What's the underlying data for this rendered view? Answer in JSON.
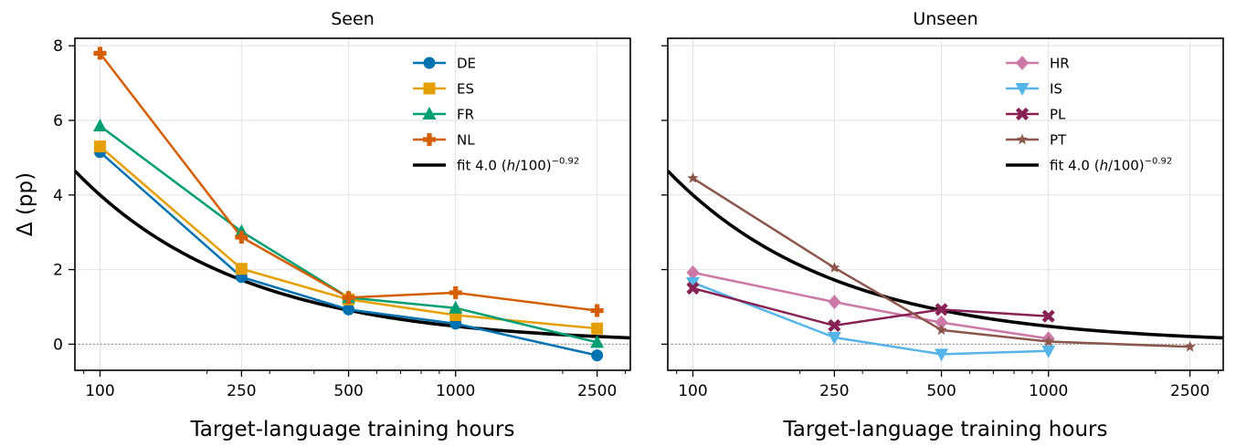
{
  "chart_data": [
    {
      "type": "line",
      "title": "Seen",
      "xlabel": "Target-language training hours",
      "ylabel": "Δ  (pp)",
      "x_scale": "log",
      "xlim": [
        85,
        3100
      ],
      "ylim": [
        -0.7,
        8.2
      ],
      "xticks": [
        100,
        250,
        500,
        1000,
        2500
      ],
      "xtick_labels": [
        "100",
        "250",
        "500",
        "1000",
        "2500"
      ],
      "yticks": [
        0,
        2,
        4,
        6,
        8
      ],
      "ytick_labels": [
        "0",
        "2",
        "4",
        "6",
        "8"
      ],
      "grid": true,
      "legend_position": "top-right",
      "zero_line": true,
      "series": [
        {
          "name": "DE",
          "color": "#0072B2",
          "marker": "circle",
          "x": [
            100,
            250,
            500,
            1000,
            2500
          ],
          "y": [
            5.15,
            1.8,
            0.93,
            0.55,
            -0.3
          ]
        },
        {
          "name": "ES",
          "color": "#E69F00",
          "marker": "square",
          "x": [
            100,
            250,
            500,
            1000,
            2500
          ],
          "y": [
            5.3,
            2.02,
            1.2,
            0.78,
            0.42
          ]
        },
        {
          "name": "FR",
          "color": "#009E73",
          "marker": "triangle-up",
          "x": [
            100,
            250,
            500,
            1000,
            2500
          ],
          "y": [
            5.85,
            3.02,
            1.25,
            0.97,
            0.05
          ]
        },
        {
          "name": "NL",
          "color": "#D55E00",
          "marker": "plus",
          "x": [
            100,
            250,
            500,
            1000,
            2500
          ],
          "y": [
            7.8,
            2.87,
            1.25,
            1.38,
            0.9
          ]
        }
      ],
      "fit": {
        "label_prefix": "fit 4.0",
        "label_expr": "(h/100)",
        "label_exponent": "−0.92",
        "a": 4.0,
        "b": -0.92,
        "color": "#000000"
      }
    },
    {
      "type": "line",
      "title": "Unseen",
      "xlabel": "Target-language training hours",
      "ylabel": "",
      "x_scale": "log",
      "xlim": [
        85,
        3100
      ],
      "ylim": [
        -0.7,
        8.2
      ],
      "xticks": [
        100,
        250,
        500,
        1000,
        2500
      ],
      "xtick_labels": [
        "100",
        "250",
        "500",
        "1000",
        "2500"
      ],
      "yticks": [
        0,
        2,
        4,
        6,
        8
      ],
      "ytick_labels": [],
      "grid": true,
      "legend_position": "top-right",
      "zero_line": true,
      "series": [
        {
          "name": "HR",
          "color": "#CC79A7",
          "marker": "diamond",
          "x": [
            100,
            250,
            500,
            1000
          ],
          "y": [
            1.92,
            1.13,
            0.58,
            0.15
          ]
        },
        {
          "name": "IS",
          "color": "#56B4E9",
          "marker": "triangle-down",
          "x": [
            100,
            250,
            500,
            1000
          ],
          "y": [
            1.65,
            0.18,
            -0.27,
            -0.18
          ]
        },
        {
          "name": "PL",
          "color": "#882255",
          "marker": "x",
          "x": [
            100,
            250,
            500,
            1000
          ],
          "y": [
            1.5,
            0.5,
            0.93,
            0.75
          ]
        },
        {
          "name": "PT",
          "color": "#8C564B",
          "marker": "star",
          "x": [
            100,
            250,
            500,
            1000,
            2500
          ],
          "y": [
            4.45,
            2.05,
            0.38,
            0.07,
            -0.07
          ]
        }
      ],
      "fit": {
        "label_prefix": "fit 4.0",
        "label_expr": "(h/100)",
        "label_exponent": "−0.92",
        "a": 4.0,
        "b": -0.92,
        "color": "#000000"
      }
    }
  ]
}
